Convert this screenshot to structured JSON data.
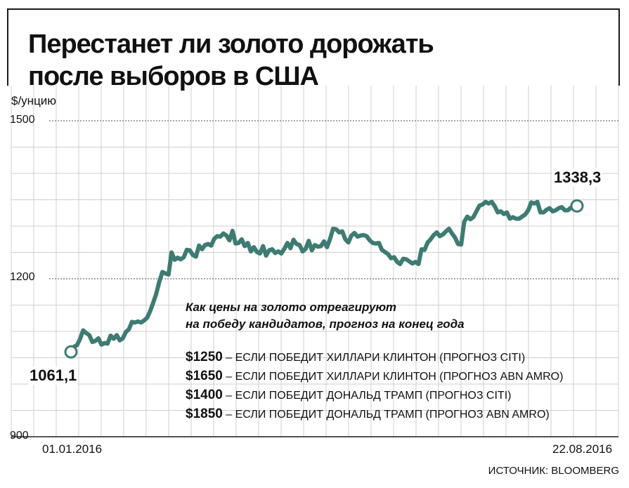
{
  "header": {
    "title_line1": "Перестанет ли золото дорожать",
    "title_line2": "после выборов в США"
  },
  "chart_data": {
    "type": "line",
    "unit_label": "$/унцию",
    "ylim": [
      900,
      1500
    ],
    "yticks": [
      "1500",
      "1200",
      "900"
    ],
    "x_start_label": "01.01.2016",
    "x_end_label": "22.08.2016",
    "grid": true,
    "color": "#3e7b72",
    "start_value_label": "1061,1",
    "end_value_label": "1338,3",
    "series": [
      {
        "values": [
          1061.1,
          1071,
          1074,
          1086,
          1102,
          1097,
          1093,
          1080,
          1082,
          1087,
          1075,
          1078,
          1077,
          1092,
          1086,
          1093,
          1083,
          1087,
          1099,
          1104,
          1118,
          1117,
          1119,
          1117,
          1121,
          1126,
          1139,
          1155,
          1172,
          1195,
          1213,
          1210,
          1208,
          1250,
          1236,
          1240,
          1237,
          1241,
          1255,
          1254,
          1245,
          1242,
          1263,
          1256,
          1264,
          1266,
          1263,
          1276,
          1281,
          1280,
          1286,
          1282,
          1273,
          1291,
          1267,
          1268,
          1275,
          1262,
          1268,
          1252,
          1260,
          1251,
          1248,
          1262,
          1244,
          1254,
          1256,
          1249,
          1252,
          1248,
          1257,
          1268,
          1258,
          1274,
          1266,
          1264,
          1252,
          1257,
          1272,
          1254,
          1264,
          1261,
          1262,
          1271,
          1260,
          1276,
          1295,
          1294,
          1288,
          1290,
          1275,
          1269,
          1282,
          1287,
          1280,
          1282,
          1283,
          1281,
          1273,
          1268,
          1267,
          1268,
          1255,
          1251,
          1247,
          1239,
          1241,
          1232,
          1228,
          1238,
          1237,
          1233,
          1229,
          1232,
          1228,
          1256,
          1255,
          1269,
          1275,
          1283,
          1288,
          1281,
          1284,
          1290,
          1295,
          1286,
          1278,
          1266,
          1265,
          1308,
          1318,
          1313,
          1317,
          1328,
          1339,
          1341,
          1346,
          1343,
          1346,
          1338,
          1326,
          1328,
          1323,
          1326,
          1314,
          1317,
          1314,
          1314,
          1318,
          1322,
          1330,
          1345,
          1343,
          1346,
          1326,
          1326,
          1331,
          1334,
          1328,
          1330,
          1334,
          1336,
          1330,
          1330,
          1335,
          1333,
          1338.3
        ]
      }
    ]
  },
  "forecast_note": {
    "heading_line1": "Как цены на золото отреагируют",
    "heading_line2": "на победу кандидатов, прогноз на конец года",
    "items": [
      {
        "amount": "$1250",
        "text": " – ЕСЛИ ПОБЕДИТ ХИЛЛАРИ КЛИНТОН (ПРОГНОЗ CITI)"
      },
      {
        "amount": "$1650",
        "text": " – ЕСЛИ ПОБЕДИТ ХИЛЛАРИ КЛИНТОН (ПРОГНОЗ ABN AMRO)"
      },
      {
        "amount": "$1400",
        "text": " – ЕСЛИ ПОБЕДИТ ДОНАЛЬД ТРАМП (ПРОГНОЗ CITI)"
      },
      {
        "amount": "$1850",
        "text": " – ЕСЛИ ПОБЕДИТ ДОНАЛЬД ТРАМП (ПРОГНОЗ ABN AMRO)"
      }
    ]
  },
  "footer": {
    "source": "ИСТОЧНИК: BLOOMBERG"
  }
}
